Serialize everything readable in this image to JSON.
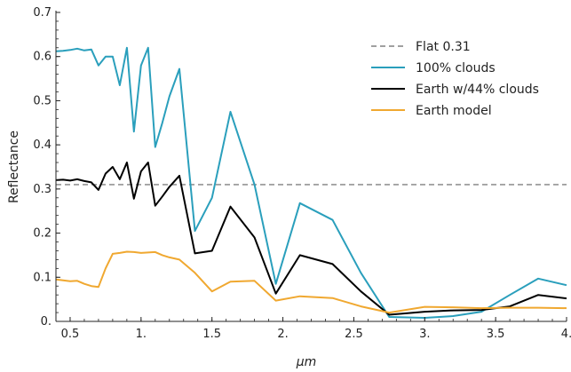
{
  "chart_data": {
    "type": "line",
    "title": "",
    "xlabel": "μm",
    "ylabel": "Reflectance",
    "xlim": [
      0.4,
      4.0
    ],
    "ylim": [
      0,
      0.7
    ],
    "x_ticks": [
      0.5,
      1.0,
      1.5,
      2.0,
      2.5,
      3.0,
      3.5,
      4.0
    ],
    "x_tick_labels": [
      "0.5",
      "1.",
      "1.5",
      "2.",
      "2.5",
      "3.",
      "3.5",
      "4."
    ],
    "y_ticks": [
      0,
      0.1,
      0.2,
      0.3,
      0.4,
      0.5,
      0.6,
      0.7
    ],
    "y_tick_labels": [
      "0.",
      "0.1",
      "0.2",
      "0.3",
      "0.4",
      "0.5",
      "0.6",
      "0.7"
    ],
    "grid": false,
    "legend_position": "top-right",
    "series": [
      {
        "name": "Flat 0.31",
        "color": "#808080",
        "dash": true,
        "x": [
          0.4,
          4.0
        ],
        "y": [
          0.31,
          0.31
        ]
      },
      {
        "name": "100% clouds",
        "color": "#2a9fbc",
        "dash": false,
        "x": [
          0.4,
          0.45,
          0.5,
          0.55,
          0.6,
          0.65,
          0.7,
          0.75,
          0.8,
          0.85,
          0.9,
          0.95,
          1.0,
          1.05,
          1.1,
          1.15,
          1.2,
          1.27,
          1.38,
          1.5,
          1.63,
          1.8,
          1.95,
          2.12,
          2.35,
          2.55,
          2.75,
          3.0,
          3.2,
          3.4,
          3.6,
          3.8,
          4.0
        ],
        "y": [
          0.612,
          0.613,
          0.615,
          0.618,
          0.614,
          0.616,
          0.58,
          0.6,
          0.6,
          0.535,
          0.62,
          0.43,
          0.58,
          0.62,
          0.395,
          0.45,
          0.51,
          0.572,
          0.205,
          0.28,
          0.475,
          0.31,
          0.085,
          0.268,
          0.23,
          0.11,
          0.01,
          0.008,
          0.012,
          0.022,
          0.06,
          0.097,
          0.082
        ]
      },
      {
        "name": "Earth w/44% clouds",
        "color": "#000000",
        "dash": false,
        "x": [
          0.4,
          0.45,
          0.5,
          0.55,
          0.6,
          0.65,
          0.7,
          0.75,
          0.8,
          0.85,
          0.9,
          0.95,
          1.0,
          1.05,
          1.1,
          1.15,
          1.2,
          1.27,
          1.38,
          1.5,
          1.63,
          1.8,
          1.95,
          2.12,
          2.35,
          2.55,
          2.75,
          3.0,
          3.2,
          3.4,
          3.6,
          3.8,
          4.0
        ],
        "y": [
          0.32,
          0.321,
          0.319,
          0.322,
          0.318,
          0.315,
          0.298,
          0.335,
          0.35,
          0.322,
          0.36,
          0.278,
          0.34,
          0.36,
          0.262,
          0.283,
          0.305,
          0.33,
          0.154,
          0.16,
          0.26,
          0.19,
          0.063,
          0.15,
          0.13,
          0.068,
          0.015,
          0.022,
          0.025,
          0.026,
          0.034,
          0.06,
          0.052
        ]
      },
      {
        "name": "Earth model",
        "color": "#f0a830",
        "dash": false,
        "x": [
          0.4,
          0.45,
          0.5,
          0.55,
          0.6,
          0.65,
          0.7,
          0.75,
          0.8,
          0.85,
          0.9,
          0.95,
          1.0,
          1.05,
          1.1,
          1.15,
          1.2,
          1.27,
          1.38,
          1.5,
          1.63,
          1.8,
          1.95,
          2.12,
          2.35,
          2.55,
          2.75,
          3.0,
          3.2,
          3.4,
          3.6,
          3.8,
          4.0
        ],
        "y": [
          0.095,
          0.093,
          0.091,
          0.092,
          0.085,
          0.08,
          0.078,
          0.12,
          0.153,
          0.155,
          0.158,
          0.157,
          0.155,
          0.156,
          0.157,
          0.15,
          0.145,
          0.14,
          0.11,
          0.068,
          0.09,
          0.092,
          0.047,
          0.057,
          0.053,
          0.034,
          0.02,
          0.033,
          0.032,
          0.03,
          0.031,
          0.031,
          0.03
        ]
      }
    ]
  }
}
